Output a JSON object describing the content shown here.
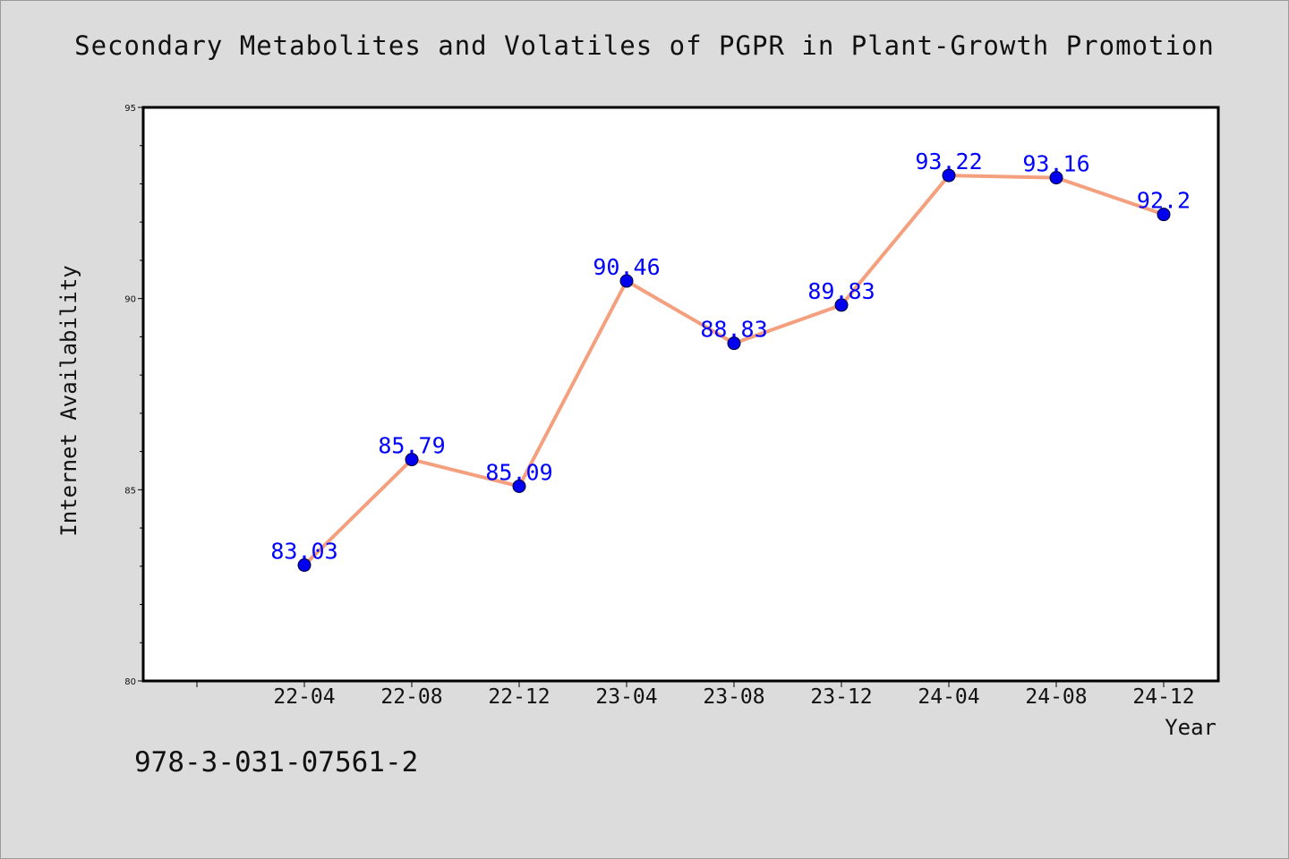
{
  "page": {
    "title": "Secondary Metabolites and Volatiles of PGPR in Plant-Growth Promotion",
    "footer_text": "978-3-031-07561-2"
  },
  "colors": {
    "background": "#dcdcdc",
    "plot_background": "#ffffff",
    "line": "#f4a07e",
    "marker": "#0000ee",
    "data_label": "#0000ff"
  },
  "chart_data": {
    "type": "line",
    "title": "Secondary Metabolites and Volatiles of PGPR in Plant-Growth Promotion",
    "xlabel": "Year",
    "ylabel": "Internet Availability",
    "categories": [
      "22-04",
      "22-08",
      "22-12",
      "23-04",
      "23-08",
      "23-12",
      "24-04",
      "24-08",
      "24-12"
    ],
    "values": [
      83.03,
      85.79,
      85.09,
      90.46,
      88.83,
      89.83,
      93.22,
      93.16,
      92.2
    ],
    "data_labels": [
      "83.03",
      "85.79",
      "85.09",
      "90.46",
      "88.83",
      "89.83",
      "93.22",
      "93.16",
      "92.2"
    ],
    "ylim": [
      80,
      95
    ],
    "y_ticks": [
      80,
      85,
      90,
      95
    ],
    "y_minor_step": 1,
    "grid": false,
    "legend": "none",
    "markers": "circle"
  }
}
